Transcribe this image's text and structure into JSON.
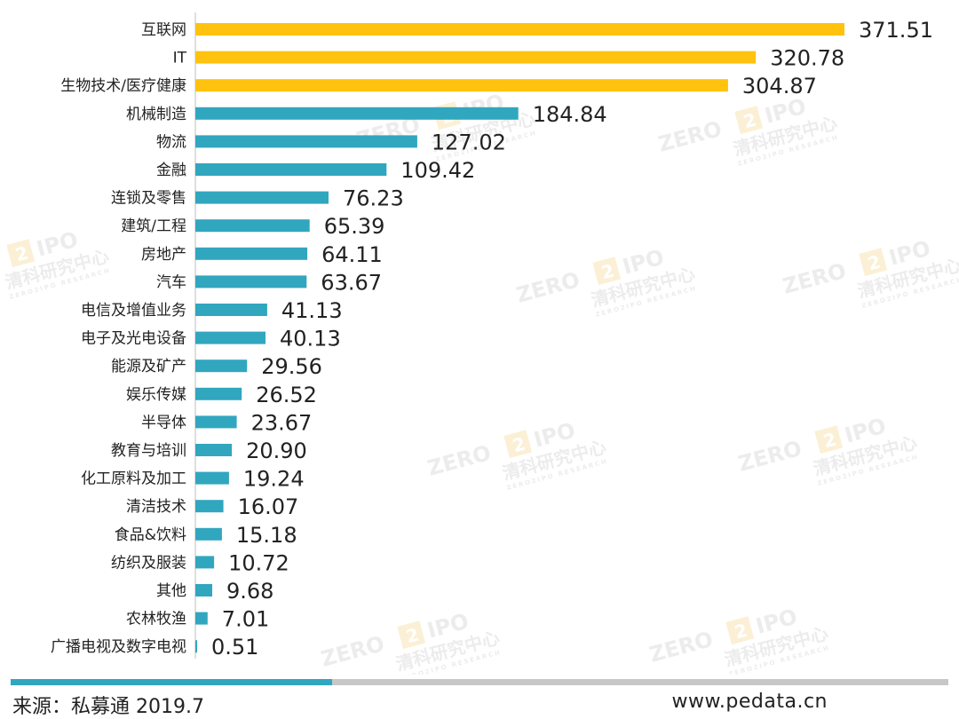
{
  "watermark": {
    "brand": "ZERO",
    "mark": "2",
    "suffix": "IPO",
    "cn": "清科研究中心",
    "en": "ZERO2IPO RESEARCH"
  },
  "footer": {
    "source": "来源：私募通 2019.7",
    "site": "www.pedata.cn",
    "accent_color": "#31A6BF",
    "rest_color": "#C7C7C7"
  },
  "chart_data": {
    "type": "bar",
    "orientation": "horizontal",
    "title": "",
    "xlabel": "",
    "ylabel": "",
    "xlim": [
      0,
      371.51
    ],
    "grid": false,
    "legend": "none",
    "highlight_color": "#FFC20E",
    "base_color": "#31A6BF",
    "highlight_top_n": 3,
    "categories": [
      "互联网",
      "IT",
      "生物技术/医疗健康",
      "机械制造",
      "物流",
      "金融",
      "连锁及零售",
      "建筑/工程",
      "房地产",
      "汽车",
      "电信及增值业务",
      "电子及光电设备",
      "能源及矿产",
      "娱乐传媒",
      "半导体",
      "教育与培训",
      "化工原料及加工",
      "清洁技术",
      "食品&饮料",
      "纺织及服装",
      "其他",
      "农林牧渔",
      "广播电视及数字电视"
    ],
    "values": [
      371.51,
      320.78,
      304.87,
      184.84,
      127.02,
      109.42,
      76.23,
      65.39,
      64.11,
      63.67,
      41.13,
      40.13,
      29.56,
      26.52,
      23.67,
      20.9,
      19.24,
      16.07,
      15.18,
      10.72,
      9.68,
      7.01,
      0.51
    ],
    "value_labels": [
      "371.51",
      "320.78",
      "304.87",
      "184.84",
      "127.02",
      "109.42",
      "76.23",
      "65.39",
      "64.11",
      "63.67",
      "41.13",
      "40.13",
      "29.56",
      "26.52",
      "23.67",
      "20.90",
      "19.24",
      "16.07",
      "15.18",
      "10.72",
      "9.68",
      "7.01",
      "0.51"
    ]
  }
}
